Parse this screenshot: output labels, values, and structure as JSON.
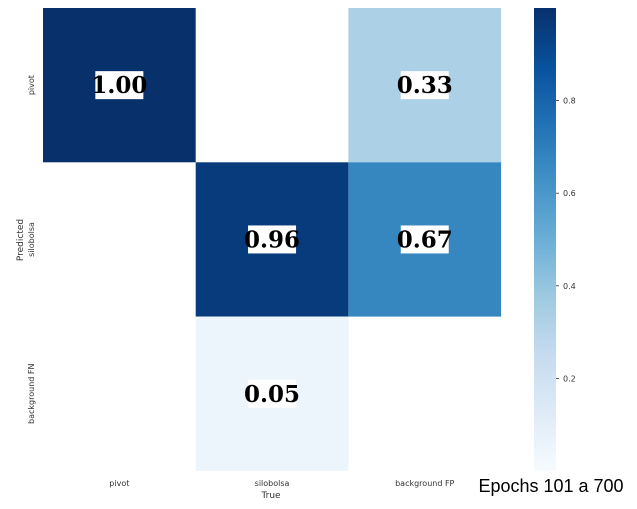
{
  "caption": "Epochs 101 a 700",
  "chart_data": {
    "type": "heatmap",
    "title": "",
    "xlabel": "True",
    "ylabel": "Predicted",
    "x_categories": [
      "pivot",
      "silobolsa",
      "background FP"
    ],
    "y_categories": [
      "pivot",
      "silobolsa",
      "background FN"
    ],
    "values": [
      [
        1.0,
        null,
        0.33
      ],
      [
        null,
        0.96,
        0.67
      ],
      [
        null,
        0.05,
        null
      ]
    ],
    "value_format": "0.00",
    "colormap": "Blues",
    "colorbar": {
      "min": 0.0,
      "max": 1.0,
      "ticks": [
        0.2,
        0.4,
        0.6,
        0.8
      ]
    },
    "colors": {
      "low": "#f7fbff",
      "high": "#08306b"
    }
  }
}
